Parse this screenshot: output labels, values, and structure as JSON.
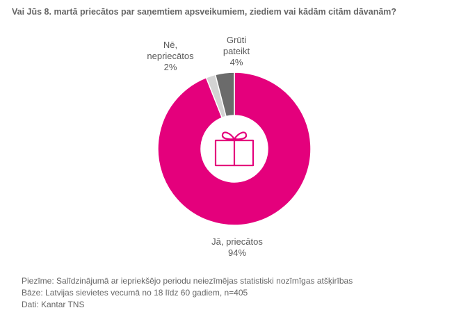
{
  "chart_data": {
    "type": "pie",
    "title": "Vai Jūs 8. martā priecātos par saņemtiem apsveikumiem, ziediem vai kādām citām dāvanām?",
    "slices": [
      {
        "label_lines": [
          "Jā, priecātos"
        ],
        "percent_label": "94%",
        "value": 94,
        "color": "#e4007c"
      },
      {
        "label_lines": [
          "Nē,",
          "nepriecātos"
        ],
        "percent_label": "2%",
        "value": 2,
        "color": "#d3d3d3"
      },
      {
        "label_lines": [
          "Grūti",
          "pateikt"
        ],
        "percent_label": "4%",
        "value": 4,
        "color": "#6b6b6b"
      }
    ],
    "center_icon": "gift-icon",
    "accent_color": "#e4007c"
  },
  "notes": [
    "Piezīme: Salīdzinājumā ar iepriekšējo periodu neiezīmējas statistiski nozīmīgas atšķirības",
    "Bāze: Latvijas sievietes vecumā no 18 līdz 60 gadiem, n=405",
    "Dati: Kantar TNS"
  ]
}
